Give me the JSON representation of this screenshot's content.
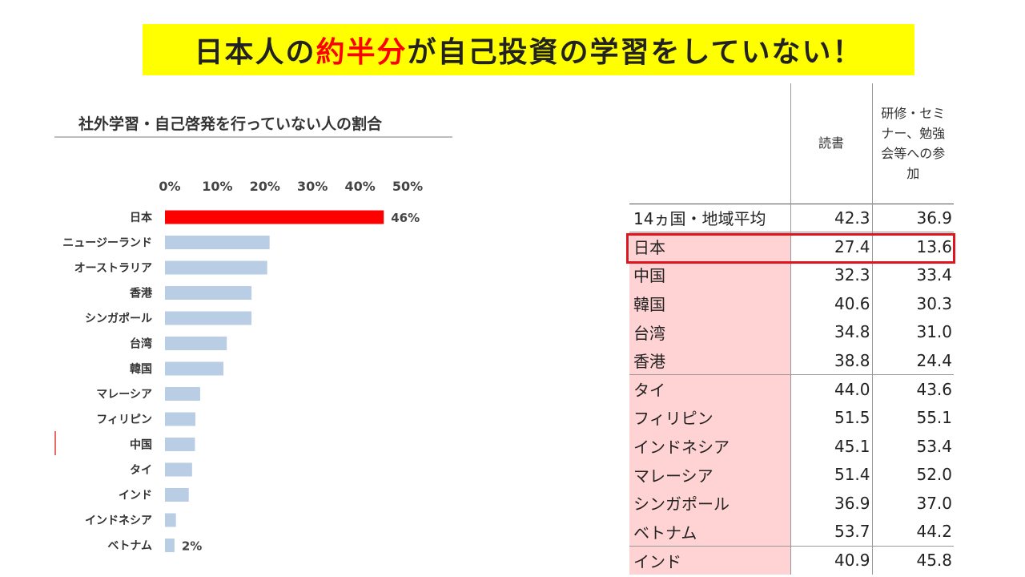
{
  "banner": {
    "part1": "日本人の",
    "highlight": "約半分",
    "part2": "が自己投資の学習をしていない！",
    "highlight_color": "#ff0000",
    "background_color": "#ffff00"
  },
  "chart_data": {
    "type": "bar",
    "orientation": "horizontal",
    "title": "社外学習・自己啓発を行っていない人の割合",
    "x_ticks": [
      "0%",
      "10%",
      "20%",
      "30%",
      "40%",
      "50%"
    ],
    "xlim": [
      0,
      50
    ],
    "categories": [
      "日本",
      "ニュージーランド",
      "オーストラリア",
      "香港",
      "シンガポール",
      "台湾",
      "韓国",
      "マレーシア",
      "フィリピン",
      "中国",
      "タイ",
      "インド",
      "インドネシア",
      "ベトナム"
    ],
    "values": [
      46,
      22,
      21.5,
      18.2,
      18.2,
      13,
      12.3,
      7.4,
      6.4,
      6.3,
      5.7,
      5,
      2.3,
      2
    ],
    "data_labels": {
      "0": "46%",
      "13": "2%"
    },
    "highlight_color": "#ff0000",
    "bar_color": "#b9cde5"
  },
  "table": {
    "headers": [
      "",
      "読書",
      "研修・セミナー、勉強会等への参加"
    ],
    "header_lines": [
      [
        ""
      ],
      [
        "読書"
      ],
      [
        "研修・セミ",
        "ナー、勉強",
        "会等への参",
        "加"
      ]
    ],
    "rows": [
      {
        "name": "14ヵ国・地域平均",
        "reading": "42.3",
        "training": "36.9"
      },
      {
        "name": "日本",
        "reading": "27.4",
        "training": "13.6"
      },
      {
        "name": "中国",
        "reading": "32.3",
        "training": "33.4"
      },
      {
        "name": "韓国",
        "reading": "40.6",
        "training": "30.3"
      },
      {
        "name": "台湾",
        "reading": "34.8",
        "training": "31.0"
      },
      {
        "name": "香港",
        "reading": "38.8",
        "training": "24.4"
      },
      {
        "name": "タイ",
        "reading": "44.0",
        "training": "43.6"
      },
      {
        "name": "フィリピン",
        "reading": "51.5",
        "training": "55.1"
      },
      {
        "name": "インドネシア",
        "reading": "45.1",
        "training": "53.4"
      },
      {
        "name": "マレーシア",
        "reading": "51.4",
        "training": "52.0"
      },
      {
        "name": "シンガポール",
        "reading": "36.9",
        "training": "37.0"
      },
      {
        "name": "ベトナム",
        "reading": "53.7",
        "training": "44.2"
      },
      {
        "name": "インド",
        "reading": "40.9",
        "training": "45.8"
      }
    ],
    "highlighted_row": "日本",
    "shade_color": "#ffd3d3",
    "box_color": "#e0141e"
  }
}
